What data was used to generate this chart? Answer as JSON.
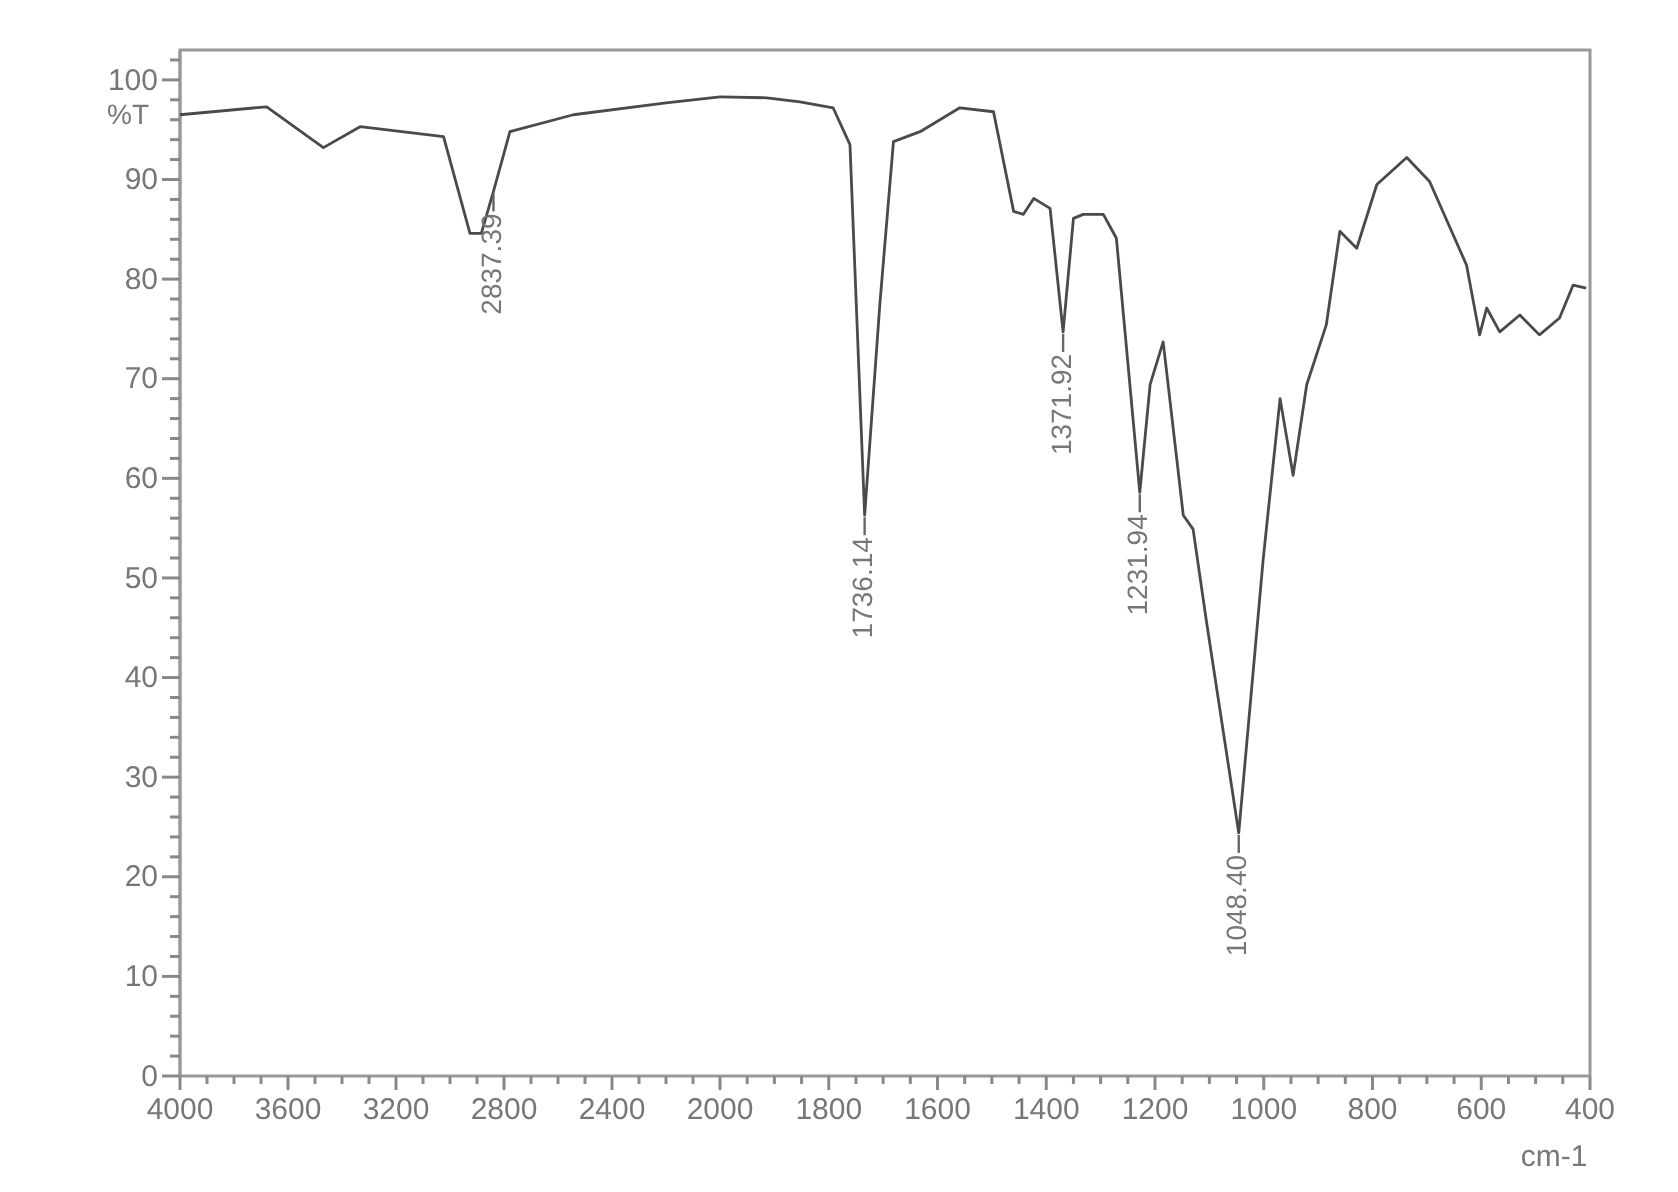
{
  "chart_data": [
    {
      "type": "line",
      "ylabel": "%T",
      "xlim": [
        4000,
        2000
      ],
      "ylim": [
        0,
        103
      ],
      "tick_labels": "xy",
      "xticks": [
        4000,
        {
          "value": 3900,
          "label": null
        },
        {
          "value": 3800,
          "label": null
        },
        {
          "value": 3700,
          "label": null
        },
        3600,
        {
          "value": 3500,
          "label": null
        },
        {
          "value": 3400,
          "label": null
        },
        {
          "value": 3300,
          "label": null
        },
        3200,
        {
          "value": 3100,
          "label": null
        },
        {
          "value": 3000,
          "label": null
        },
        {
          "value": 2900,
          "label": null
        },
        2800,
        {
          "value": 2700,
          "label": null
        },
        {
          "value": 2600,
          "label": null
        },
        {
          "value": 2500,
          "label": null
        },
        2400,
        {
          "value": 2300,
          "label": null
        },
        {
          "value": 2200,
          "label": null
        },
        {
          "value": 2100,
          "label": null
        },
        2000
      ],
      "yticks": [
        0,
        {
          "value": 2,
          "label": null
        },
        {
          "value": 4,
          "label": null
        },
        {
          "value": 6,
          "label": null
        },
        {
          "value": 8,
          "label": null
        },
        10,
        {
          "value": 12,
          "label": null
        },
        {
          "value": 14,
          "label": null
        },
        {
          "value": 16,
          "label": null
        },
        {
          "value": 18,
          "label": null
        },
        20,
        {
          "value": 22,
          "label": null
        },
        {
          "value": 24,
          "label": null
        },
        {
          "value": 26,
          "label": null
        },
        {
          "value": 28,
          "label": null
        },
        30,
        {
          "value": 32,
          "label": null
        },
        {
          "value": 34,
          "label": null
        },
        {
          "value": 36,
          "label": null
        },
        {
          "value": 38,
          "label": null
        },
        40,
        {
          "value": 42,
          "label": null
        },
        {
          "value": 44,
          "label": null
        },
        {
          "value": 46,
          "label": null
        },
        {
          "value": 48,
          "label": null
        },
        50,
        {
          "value": 52,
          "label": null
        },
        {
          "value": 54,
          "label": null
        },
        {
          "value": 56,
          "label": null
        },
        {
          "value": 58,
          "label": null
        },
        60,
        {
          "value": 62,
          "label": null
        },
        {
          "value": 64,
          "label": null
        },
        {
          "value": 66,
          "label": null
        },
        {
          "value": 68,
          "label": null
        },
        70,
        {
          "value": 72,
          "label": null
        },
        {
          "value": 74,
          "label": null
        },
        {
          "value": 76,
          "label": null
        },
        {
          "value": 78,
          "label": null
        },
        80,
        {
          "value": 82,
          "label": null
        },
        {
          "value": 84,
          "label": null
        },
        {
          "value": 86,
          "label": null
        },
        {
          "value": 88,
          "label": null
        },
        90,
        {
          "value": 92,
          "label": null
        },
        {
          "value": 94,
          "label": null
        },
        {
          "value": 96,
          "label": null
        },
        {
          "value": 98,
          "label": null
        },
        100,
        {
          "value": 102,
          "label": null
        }
      ],
      "marker": "none",
      "line_style": "solid",
      "series": [
        {
          "color": "#4a4a4a",
          "x": [
            4000,
            3679,
            3469,
            3333,
            3024,
            2926,
            2884,
            2839,
            2778,
            2543,
            2200,
            2000
          ],
          "values": [
            96.5,
            97.3,
            93.2,
            95.3,
            94.3,
            84.6,
            84.6,
            88.8,
            94.8,
            96.5,
            97.7,
            98.3
          ]
        }
      ],
      "annotations": [
        {
          "text": "2837.39",
          "x": 2839,
          "y": 88.8
        }
      ]
    },
    {
      "type": "line",
      "xlabel": "cm-1",
      "xlim": [
        2000,
        400
      ],
      "ylim": [
        0,
        103
      ],
      "tick_labels": "x",
      "xticks": [
        {
          "value": 1950,
          "label": null
        },
        {
          "value": 1900,
          "label": null
        },
        {
          "value": 1850,
          "label": null
        },
        1800,
        {
          "value": 1750,
          "label": null
        },
        {
          "value": 1700,
          "label": null
        },
        {
          "value": 1650,
          "label": null
        },
        1600,
        {
          "value": 1550,
          "label": null
        },
        {
          "value": 1500,
          "label": null
        },
        {
          "value": 1450,
          "label": null
        },
        1400,
        {
          "value": 1350,
          "label": null
        },
        {
          "value": 1300,
          "label": null
        },
        {
          "value": 1250,
          "label": null
        },
        1200,
        {
          "value": 1150,
          "label": null
        },
        {
          "value": 1100,
          "label": null
        },
        {
          "value": 1050,
          "label": null
        },
        1000,
        {
          "value": 950,
          "label": null
        },
        {
          "value": 900,
          "label": null
        },
        {
          "value": 850,
          "label": null
        },
        800,
        {
          "value": 750,
          "label": null
        },
        {
          "value": 700,
          "label": null
        },
        {
          "value": 650,
          "label": null
        },
        600,
        {
          "value": 550,
          "label": null
        },
        {
          "value": 500,
          "label": null
        },
        {
          "value": 450,
          "label": null
        },
        400
      ],
      "marker": "none",
      "line_style": "solid",
      "series": [
        {
          "color": "#4a4a4a",
          "x": [
            2000,
            1914,
            1853,
            1792,
            1761,
            1734,
            1706,
            1681,
            1632,
            1559,
            1497,
            1460,
            1442,
            1423,
            1393,
            1369,
            1350,
            1332,
            1295,
            1271,
            1228,
            1209,
            1185,
            1148,
            1130,
            1105,
            1046,
            1001,
            970,
            946,
            921,
            885,
            860,
            829,
            792,
            737,
            695,
            627,
            603,
            590,
            566,
            529,
            493,
            456,
            431,
            407
          ],
          "values": [
            98.3,
            98.2,
            97.8,
            97.2,
            93.5,
            56.3,
            77.5,
            93.8,
            94.8,
            97.2,
            96.8,
            86.8,
            86.5,
            88.1,
            87.1,
            74.7,
            86.1,
            86.5,
            86.5,
            84.1,
            58.6,
            69.4,
            73.7,
            56.3,
            54.9,
            45.5,
            24.4,
            51.9,
            68.0,
            60.3,
            69.4,
            75.4,
            84.8,
            83.1,
            89.5,
            92.2,
            89.8,
            81.4,
            74.4,
            77.1,
            74.7,
            76.4,
            74.4,
            76.1,
            79.4,
            79.1
          ]
        }
      ],
      "annotations": [
        {
          "text": "1736.14",
          "x": 1734,
          "y": 56.3
        },
        {
          "text": "1371.92",
          "x": 1369,
          "y": 74.7
        },
        {
          "text": "1231.94",
          "x": 1228,
          "y": 58.6
        },
        {
          "text": "1048.40",
          "x": 1046,
          "y": 24.4
        }
      ]
    }
  ]
}
